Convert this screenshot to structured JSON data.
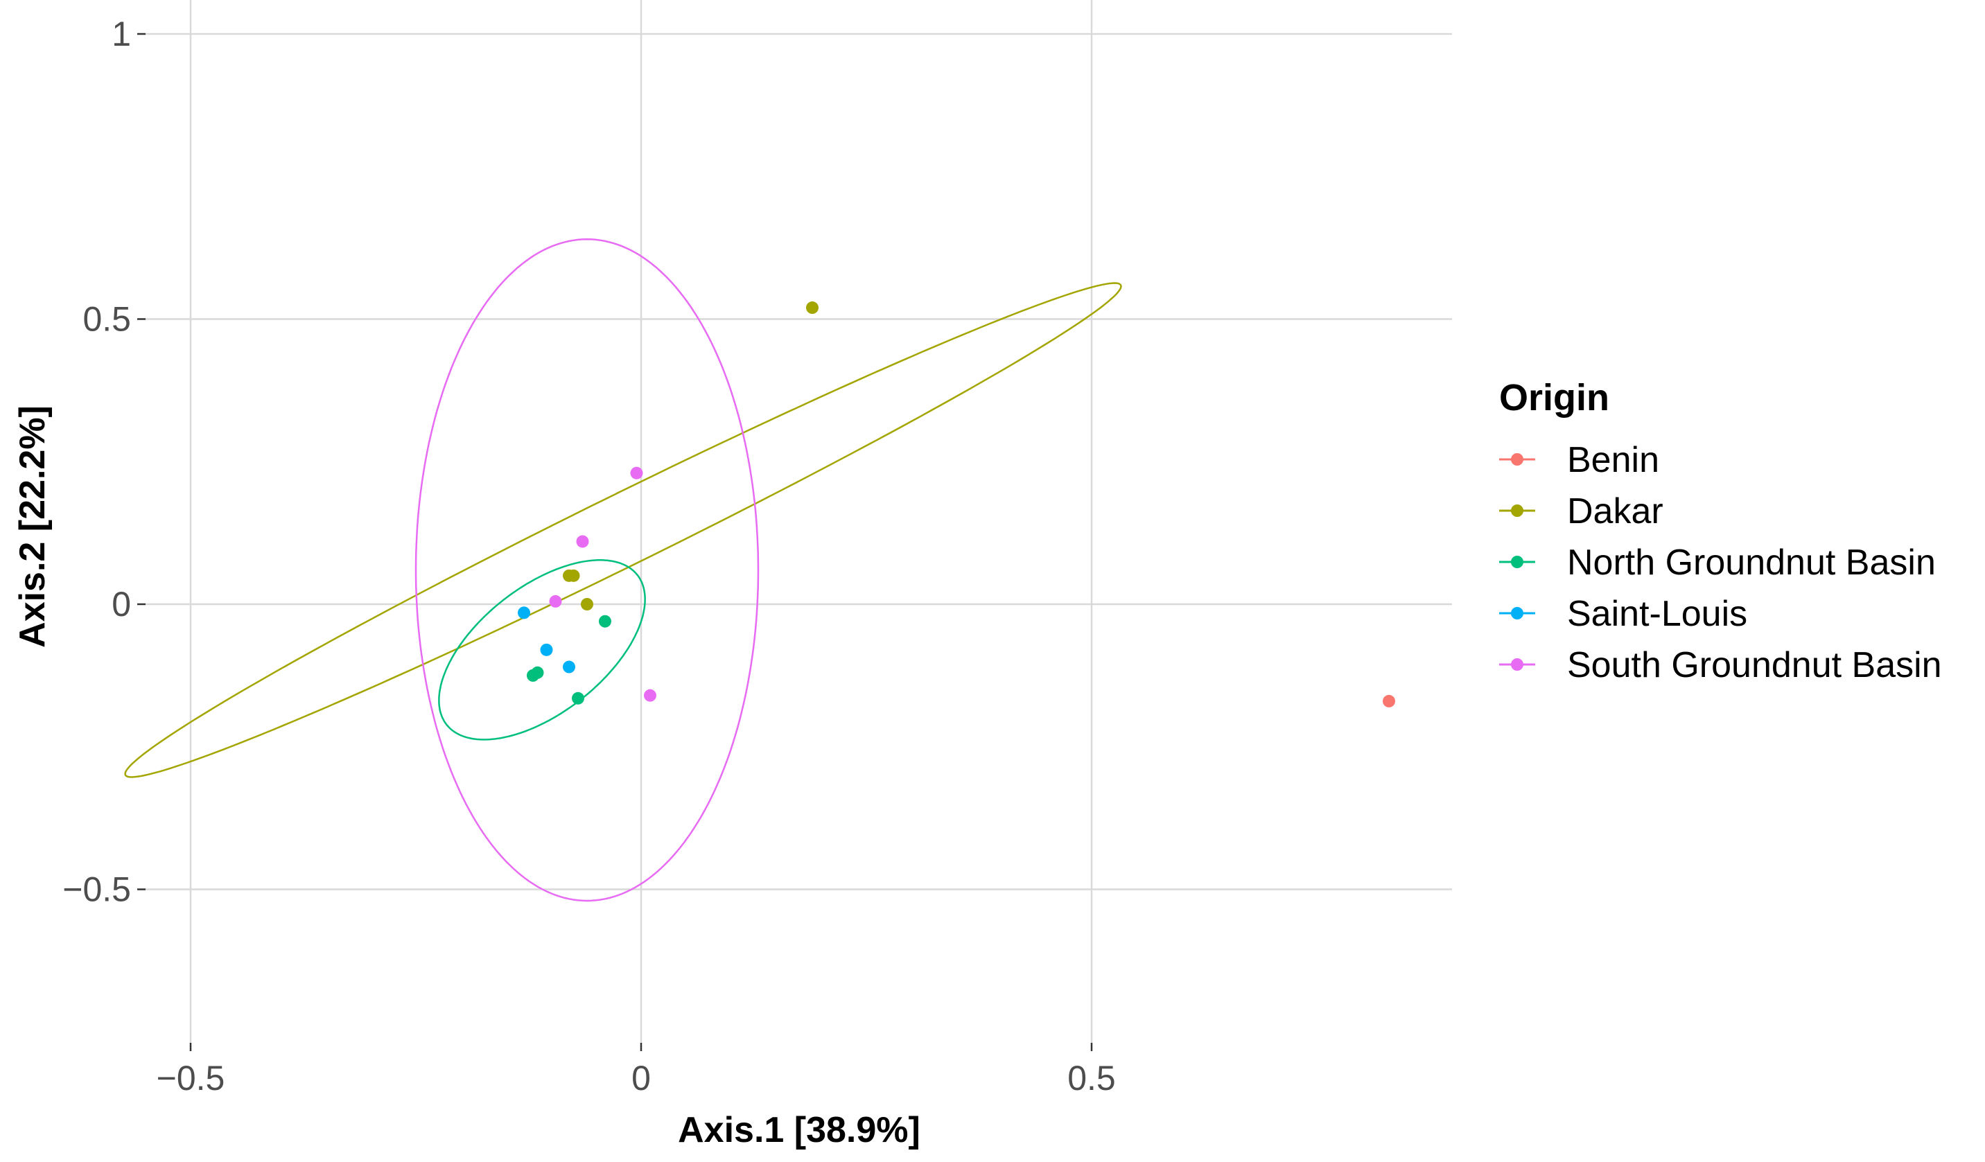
{
  "chart_data": {
    "type": "scatter",
    "title": "",
    "xlabel": "Axis.1   [38.9%]",
    "ylabel": "Axis.2   [22.2%]",
    "xlim": [
      -0.5,
      0.9
    ],
    "ylim": [
      -0.7,
      1.0
    ],
    "xticks": [
      -0.5,
      0,
      0.5
    ],
    "xtick_labels": [
      "−0.5",
      "0",
      "0.5"
    ],
    "yticks": [
      -0.5,
      0,
      0.5,
      1
    ],
    "ytick_labels": [
      "−0.5",
      "0",
      "0.5",
      "1"
    ],
    "grid": true,
    "legend": {
      "title": "Origin",
      "position": "right"
    },
    "series": [
      {
        "name": "Benin",
        "color": "#F8766D",
        "points": [
          [
            0.83,
            -0.17
          ]
        ],
        "ellipse": null
      },
      {
        "name": "Dakar",
        "color": "#A3A500",
        "points": [
          [
            0.19,
            0.52
          ],
          [
            -0.08,
            0.05
          ],
          [
            -0.075,
            0.05
          ],
          [
            -0.06,
            0.0
          ]
        ],
        "ellipse": {
          "cx": -0.02,
          "cy": 0.13,
          "rx": 0.7,
          "ry": 0.055,
          "angle_deg": 38
        }
      },
      {
        "name": "North Groundnut Basin",
        "color": "#00BF7D",
        "points": [
          [
            -0.04,
            -0.03
          ],
          [
            -0.12,
            -0.125
          ],
          [
            -0.115,
            -0.12
          ],
          [
            -0.07,
            -0.165
          ]
        ],
        "ellipse": {
          "cx": -0.11,
          "cy": -0.08,
          "rx": 0.175,
          "ry": 0.085,
          "angle_deg": 60
        }
      },
      {
        "name": "Saint-Louis",
        "color": "#00B0F6",
        "points": [
          [
            -0.13,
            -0.015
          ],
          [
            -0.105,
            -0.08
          ],
          [
            -0.08,
            -0.11
          ]
        ],
        "ellipse": null
      },
      {
        "name": "South Groundnut Basin",
        "color": "#E76BF3",
        "points": [
          [
            -0.005,
            0.23
          ],
          [
            -0.065,
            0.11
          ],
          [
            -0.095,
            0.005
          ],
          [
            0.01,
            -0.16
          ]
        ],
        "ellipse": {
          "cx": -0.06,
          "cy": 0.06,
          "rx": 0.19,
          "ry": 0.58,
          "angle_deg": 0
        }
      }
    ]
  }
}
